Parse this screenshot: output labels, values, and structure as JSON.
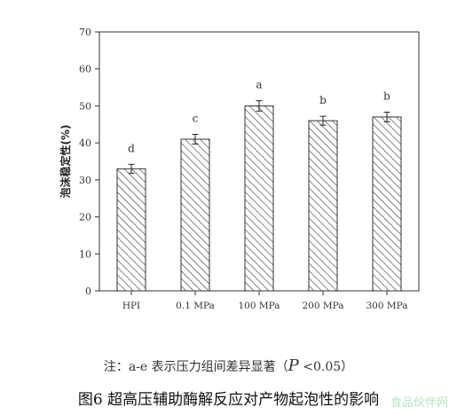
{
  "chart_data": {
    "type": "bar",
    "categories": [
      "HPI",
      "0.1 MPa",
      "100 MPa",
      "200 MPa",
      "300 MPa"
    ],
    "values": [
      33,
      41,
      50,
      46,
      47
    ],
    "errors": [
      1.2,
      1.3,
      1.4,
      1.2,
      1.3
    ],
    "letters": [
      "d",
      "c",
      "a",
      "b",
      "b"
    ],
    "ylabel": "泡沫稳定性(%)",
    "xlabel": "",
    "ylim": [
      0,
      70
    ],
    "yticks": [
      0,
      10,
      20,
      30,
      40,
      50,
      60,
      70
    ],
    "bar_pattern": "diagonal-hatch",
    "grid": false
  },
  "note": {
    "prefix": "注：a-e 表示压力组间差异显著（",
    "p_symbol": "P",
    "suffix": " <0.05）"
  },
  "caption": "图6  超高压辅助酶解反应对产物起泡性的影响",
  "watermark": "食品伙伴网"
}
